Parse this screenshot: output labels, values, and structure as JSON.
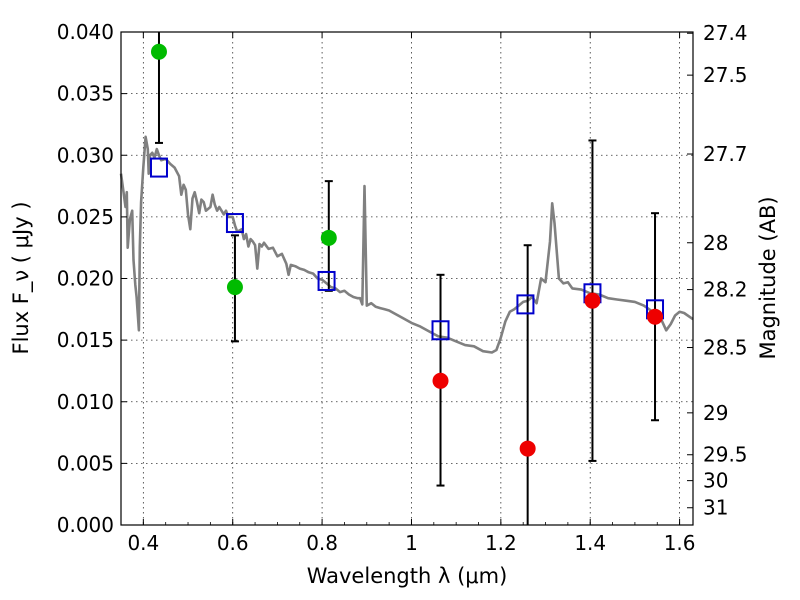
{
  "chart_data": {
    "type": "scatter",
    "xlabel": "Wavelength  λ (μm)",
    "ylabel": "Flux  F_ν  ( μJy )",
    "y2label": "Magnitude (AB)",
    "xlim": [
      0.35,
      1.63
    ],
    "ylim": [
      0.0,
      0.04
    ],
    "x_ticks": [
      0.4,
      0.6,
      0.8,
      1.0,
      1.2,
      1.4,
      1.6
    ],
    "x_tick_labels": [
      "0.4",
      "0.6",
      "0.8",
      "1",
      "1.2",
      "1.4",
      "1.6"
    ],
    "y_ticks": [
      0.0,
      0.005,
      0.01,
      0.015,
      0.02,
      0.025,
      0.03,
      0.035,
      0.04
    ],
    "y_tick_labels": [
      "0.000",
      "0.005",
      "0.010",
      "0.015",
      "0.020",
      "0.025",
      "0.030",
      "0.035",
      "0.040"
    ],
    "y2_tick_labels": [
      "27.4",
      "27.5",
      "27.7",
      "28",
      "28.2",
      "28.5",
      "29",
      "29.5",
      "30",
      "31"
    ],
    "y2_tick_flux": [
      0.0399,
      0.0365,
      0.0301,
      0.0229,
      0.0191,
      0.0144,
      0.0091,
      0.0057,
      0.0036,
      0.0014
    ],
    "grid": true,
    "colors": {
      "sed": "#808080",
      "model": "#0000cc",
      "green": "#00bb00",
      "red": "#ee0000",
      "errorbar": "#000000"
    },
    "series": [
      {
        "name": "sed",
        "style": "line",
        "points": [
          [
            0.35,
            0.0285
          ],
          [
            0.355,
            0.0272
          ],
          [
            0.36,
            0.0258
          ],
          [
            0.363,
            0.027
          ],
          [
            0.365,
            0.0225
          ],
          [
            0.37,
            0.0248
          ],
          [
            0.375,
            0.0255
          ],
          [
            0.378,
            0.0215
          ],
          [
            0.382,
            0.0195
          ],
          [
            0.385,
            0.0185
          ],
          [
            0.39,
            0.0158
          ],
          [
            0.392,
            0.0225
          ],
          [
            0.395,
            0.0262
          ],
          [
            0.4,
            0.029
          ],
          [
            0.405,
            0.0315
          ],
          [
            0.41,
            0.0305
          ],
          [
            0.412,
            0.0285
          ],
          [
            0.415,
            0.03
          ],
          [
            0.42,
            0.0302
          ],
          [
            0.425,
            0.0298
          ],
          [
            0.43,
            0.0305
          ],
          [
            0.435,
            0.03
          ],
          [
            0.44,
            0.0296
          ],
          [
            0.45,
            0.0297
          ],
          [
            0.46,
            0.0293
          ],
          [
            0.47,
            0.029
          ],
          [
            0.48,
            0.0283
          ],
          [
            0.485,
            0.0268
          ],
          [
            0.49,
            0.0276
          ],
          [
            0.495,
            0.0272
          ],
          [
            0.5,
            0.0252
          ],
          [
            0.505,
            0.024
          ],
          [
            0.51,
            0.0265
          ],
          [
            0.515,
            0.027
          ],
          [
            0.52,
            0.0262
          ],
          [
            0.525,
            0.0253
          ],
          [
            0.53,
            0.0264
          ],
          [
            0.535,
            0.0262
          ],
          [
            0.54,
            0.0255
          ],
          [
            0.55,
            0.0258
          ],
          [
            0.555,
            0.0268
          ],
          [
            0.56,
            0.026
          ],
          [
            0.565,
            0.0255
          ],
          [
            0.57,
            0.0258
          ],
          [
            0.58,
            0.0252
          ],
          [
            0.585,
            0.0255
          ],
          [
            0.59,
            0.025
          ],
          [
            0.6,
            0.025
          ],
          [
            0.605,
            0.0243
          ],
          [
            0.61,
            0.0238
          ],
          [
            0.62,
            0.024
          ],
          [
            0.625,
            0.0232
          ],
          [
            0.63,
            0.0236
          ],
          [
            0.635,
            0.0226
          ],
          [
            0.64,
            0.0232
          ],
          [
            0.645,
            0.023
          ],
          [
            0.65,
            0.0227
          ],
          [
            0.655,
            0.0208
          ],
          [
            0.66,
            0.0228
          ],
          [
            0.665,
            0.0226
          ],
          [
            0.67,
            0.0229
          ],
          [
            0.68,
            0.0224
          ],
          [
            0.69,
            0.0225
          ],
          [
            0.7,
            0.0218
          ],
          [
            0.71,
            0.022
          ],
          [
            0.72,
            0.0212
          ],
          [
            0.725,
            0.0203
          ],
          [
            0.73,
            0.0211
          ],
          [
            0.74,
            0.021
          ],
          [
            0.75,
            0.0208
          ],
          [
            0.76,
            0.0207
          ],
          [
            0.77,
            0.0205
          ],
          [
            0.78,
            0.0204
          ],
          [
            0.79,
            0.02
          ],
          [
            0.8,
            0.0199
          ],
          [
            0.81,
            0.0196
          ],
          [
            0.82,
            0.0193
          ],
          [
            0.83,
            0.0192
          ],
          [
            0.84,
            0.0189
          ],
          [
            0.85,
            0.019
          ],
          [
            0.86,
            0.0187
          ],
          [
            0.87,
            0.0185
          ],
          [
            0.88,
            0.0184
          ],
          [
            0.885,
            0.0184
          ],
          [
            0.89,
            0.0179
          ],
          [
            0.895,
            0.0275
          ],
          [
            0.9,
            0.0178
          ],
          [
            0.91,
            0.018
          ],
          [
            0.92,
            0.0177
          ],
          [
            0.93,
            0.0176
          ],
          [
            0.94,
            0.0175
          ],
          [
            0.95,
            0.0174
          ],
          [
            0.96,
            0.0172
          ],
          [
            0.98,
            0.0168
          ],
          [
            1.0,
            0.0164
          ],
          [
            1.02,
            0.0161
          ],
          [
            1.04,
            0.0157
          ],
          [
            1.06,
            0.0153
          ],
          [
            1.08,
            0.0152
          ],
          [
            1.1,
            0.0149
          ],
          [
            1.12,
            0.0146
          ],
          [
            1.14,
            0.0145
          ],
          [
            1.16,
            0.0141
          ],
          [
            1.18,
            0.014
          ],
          [
            1.19,
            0.0142
          ],
          [
            1.2,
            0.0152
          ],
          [
            1.21,
            0.0165
          ],
          [
            1.22,
            0.0173
          ],
          [
            1.23,
            0.0175
          ],
          [
            1.24,
            0.0178
          ],
          [
            1.25,
            0.0181
          ],
          [
            1.26,
            0.0182
          ],
          [
            1.27,
            0.0185
          ],
          [
            1.28,
            0.018
          ],
          [
            1.29,
            0.02
          ],
          [
            1.3,
            0.0197
          ],
          [
            1.31,
            0.023
          ],
          [
            1.315,
            0.0261
          ],
          [
            1.32,
            0.0245
          ],
          [
            1.33,
            0.02
          ],
          [
            1.34,
            0.0196
          ],
          [
            1.35,
            0.0197
          ],
          [
            1.36,
            0.0192
          ],
          [
            1.38,
            0.0191
          ],
          [
            1.4,
            0.0188
          ],
          [
            1.42,
            0.0187
          ],
          [
            1.44,
            0.0184
          ],
          [
            1.46,
            0.0183
          ],
          [
            1.48,
            0.0182
          ],
          [
            1.5,
            0.0181
          ],
          [
            1.52,
            0.0178
          ],
          [
            1.54,
            0.0173
          ],
          [
            1.56,
            0.0166
          ],
          [
            1.57,
            0.0158
          ],
          [
            1.58,
            0.0163
          ],
          [
            1.59,
            0.017
          ],
          [
            1.6,
            0.0173
          ],
          [
            1.61,
            0.0172
          ],
          [
            1.63,
            0.0167
          ]
        ]
      },
      {
        "name": "model",
        "style": "open-square",
        "points": [
          [
            0.435,
            0.029
          ],
          [
            0.605,
            0.0245
          ],
          [
            0.81,
            0.0198
          ],
          [
            1.065,
            0.0158
          ],
          [
            1.255,
            0.0179
          ],
          [
            1.405,
            0.0188
          ],
          [
            1.545,
            0.0175
          ]
        ]
      },
      {
        "name": "green",
        "style": "filled-circle",
        "points": [
          [
            0.435,
            0.0384
          ],
          [
            0.605,
            0.0193
          ],
          [
            0.815,
            0.0233
          ]
        ],
        "errors": [
          null,
          [
            0.0149,
            0.0235
          ],
          [
            0.019,
            0.0279
          ]
        ]
      },
      {
        "name": "red",
        "style": "filled-circle",
        "points": [
          [
            1.065,
            0.0117
          ],
          [
            1.26,
            0.0062
          ],
          [
            1.405,
            0.0182
          ],
          [
            1.545,
            0.0169
          ]
        ],
        "errors": [
          [
            0.0032,
            0.0203
          ],
          [
            0.0,
            0.0227
          ],
          [
            0.0052,
            0.0312
          ],
          [
            0.0085,
            0.0253
          ]
        ]
      },
      {
        "name": "errorbar-green-first",
        "style": "errorbar",
        "points": [
          [
            0.435,
            0.031,
            0.04
          ]
        ]
      }
    ]
  }
}
